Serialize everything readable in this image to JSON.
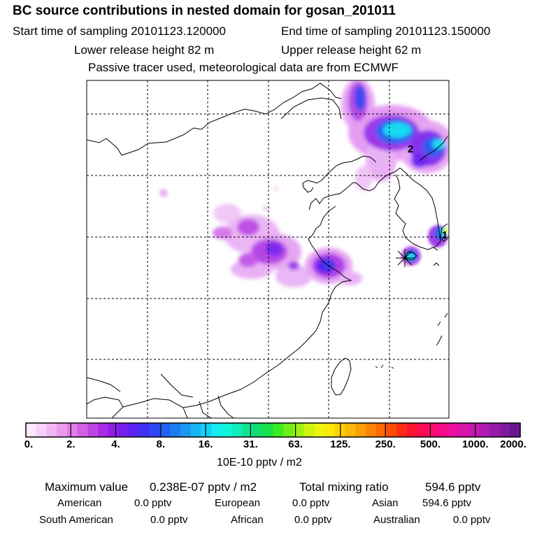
{
  "header": {
    "title": "BC  source contributions in nested domain for gosan_201011",
    "start_label": "Start time of sampling 20101123.120000",
    "end_label": "End time of sampling 20101123.150000",
    "lower_label": "Lower release height   82 m",
    "upper_label": "Upper release height   62 m",
    "tracer_label": "Passive tracer used, meteorological data are from ECMWF"
  },
  "map": {
    "site_labels": [
      "1",
      "2"
    ]
  },
  "colorbar": {
    "labels": [
      "0.",
      "2.",
      "4.",
      "8.",
      "16.",
      "31.",
      "63.",
      "125.",
      "250.",
      "500.",
      "1000.",
      "2000."
    ],
    "unit": "10E-10 pptv / m2",
    "colors": [
      "#fde8fd",
      "#f8d0f8",
      "#f2b6f2",
      "#eb9aee",
      "#e07de9",
      "#d060e5",
      "#bf45e3",
      "#a92be3",
      "#8f1ee8",
      "#7420ee",
      "#5a24f2",
      "#4030f4",
      "#2e46f4",
      "#2060f2",
      "#1a7cf0",
      "#1a98f0",
      "#1ab4f2",
      "#16d0f4",
      "#14eaf2",
      "#10f4dc",
      "#10ecb8",
      "#10e494",
      "#10dc70",
      "#18e048",
      "#3cec20",
      "#70f018",
      "#a0f214",
      "#ccf410",
      "#eef40c",
      "#fce808",
      "#fcd006",
      "#fcb806",
      "#fc9e06",
      "#fc8408",
      "#fc6a08",
      "#fc4c0a",
      "#fc2c12",
      "#fc1430",
      "#fc0c50",
      "#fc0a70",
      "#f40c88",
      "#e8109c",
      "#d814a8",
      "#c418b0",
      "#b01ab0",
      "#981aa8",
      "#801a9c",
      "#681690"
    ]
  },
  "stats": {
    "max_label": "Maximum value",
    "max_value": "0.238E-07 pptv / m2",
    "total_label": "Total mixing ratio",
    "total_value": "594.6 pptv",
    "rows": [
      [
        {
          "name": "American",
          "value": "0.0 pptv"
        },
        {
          "name": "European",
          "value": "0.0 pptv"
        },
        {
          "name": "Asian",
          "value": "594.6 pptv"
        }
      ],
      [
        {
          "name": "South American",
          "value": "0.0 pptv"
        },
        {
          "name": "African",
          "value": "0.0 pptv"
        },
        {
          "name": "Australian",
          "value": "0.0 pptv"
        }
      ]
    ]
  }
}
